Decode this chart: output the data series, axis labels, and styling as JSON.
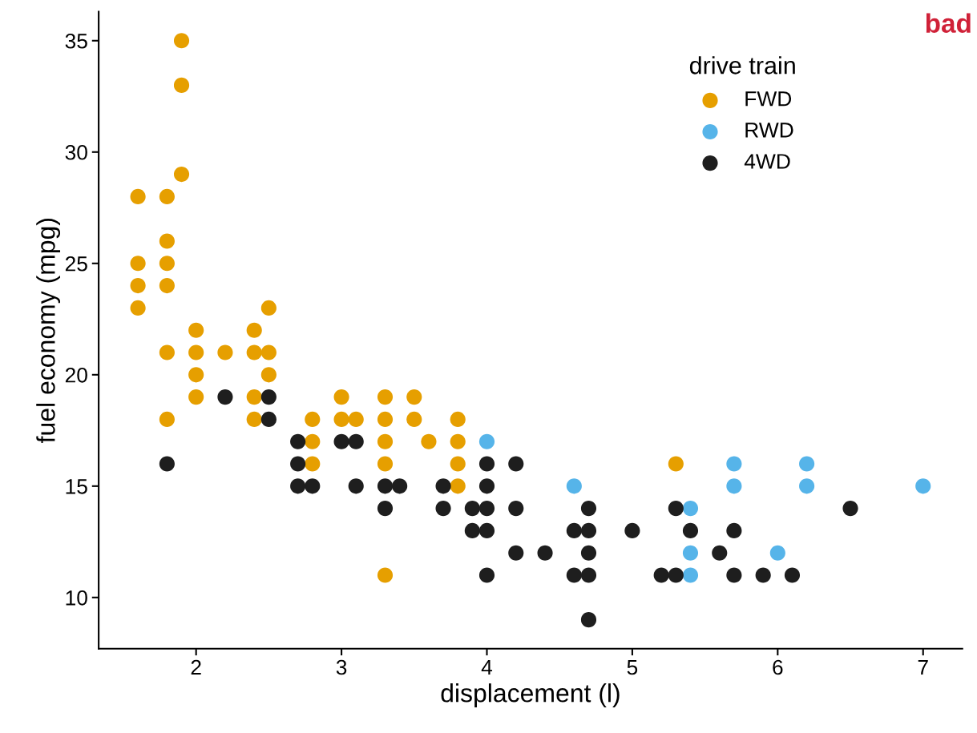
{
  "chart_data": {
    "type": "scatter",
    "xlabel": "displacement (l)",
    "ylabel": "fuel economy (mpg)",
    "legend_title": "drive train",
    "legend": "top right",
    "marker": "circle",
    "grid": false,
    "xlim": [
      1.33,
      7.27
    ],
    "ylim": [
      7.7,
      36.3
    ],
    "xticks": [
      2,
      3,
      4,
      5,
      6,
      7
    ],
    "yticks": [
      10,
      15,
      20,
      25,
      30,
      35
    ],
    "annotations": [
      "bad"
    ],
    "series": [
      {
        "name": "FWD",
        "color": "#e69f00",
        "x": [
          1.6,
          1.6,
          1.6,
          1.6,
          1.8,
          1.8,
          1.8,
          1.8,
          1.8,
          1.8,
          1.9,
          1.9,
          1.9,
          2.0,
          2.0,
          2.0,
          2.0,
          2.2,
          2.4,
          2.4,
          2.4,
          2.4,
          2.5,
          2.5,
          2.5,
          2.8,
          2.8,
          2.8,
          3.0,
          3.0,
          3.1,
          3.3,
          3.3,
          3.3,
          3.3,
          3.3,
          3.5,
          3.5,
          3.6,
          3.8,
          3.8,
          3.8,
          3.8,
          5.3
        ],
        "values": [
          28,
          25,
          24,
          23,
          28,
          26,
          25,
          24,
          21,
          18,
          35,
          33,
          29,
          22,
          21,
          20,
          19,
          21,
          22,
          21,
          19,
          18,
          23,
          21,
          20,
          18,
          17,
          16,
          19,
          18,
          18,
          19,
          18,
          17,
          16,
          11,
          19,
          18,
          17,
          18,
          17,
          16,
          15,
          16
        ]
      },
      {
        "name": "RWD",
        "color": "#56b4e9",
        "x": [
          4.0,
          4.6,
          5.4,
          5.4,
          5.4,
          5.7,
          5.7,
          6.0,
          6.2,
          6.2,
          7.0
        ],
        "values": [
          17,
          15,
          14,
          12,
          11,
          16,
          15,
          12,
          16,
          15,
          15
        ]
      },
      {
        "name": "4WD",
        "color": "#1e1e1e",
        "x": [
          1.8,
          2.2,
          2.5,
          2.5,
          2.7,
          2.7,
          2.7,
          2.8,
          3.0,
          3.1,
          3.1,
          3.3,
          3.3,
          3.4,
          3.7,
          3.7,
          3.9,
          3.9,
          4.0,
          4.0,
          4.0,
          4.0,
          4.0,
          4.2,
          4.2,
          4.2,
          4.4,
          4.6,
          4.6,
          4.7,
          4.7,
          4.7,
          4.7,
          4.7,
          5.0,
          5.2,
          5.3,
          5.3,
          5.4,
          5.6,
          5.7,
          5.7,
          5.9,
          6.1,
          6.5
        ],
        "values": [
          16,
          19,
          19,
          18,
          17,
          16,
          15,
          15,
          17,
          17,
          15,
          15,
          14,
          15,
          15,
          14,
          14,
          13,
          16,
          15,
          14,
          13,
          11,
          16,
          14,
          12,
          12,
          13,
          11,
          14,
          13,
          12,
          11,
          9,
          13,
          11,
          14,
          11,
          13,
          12,
          13,
          11,
          11,
          11,
          14
        ]
      }
    ]
  }
}
